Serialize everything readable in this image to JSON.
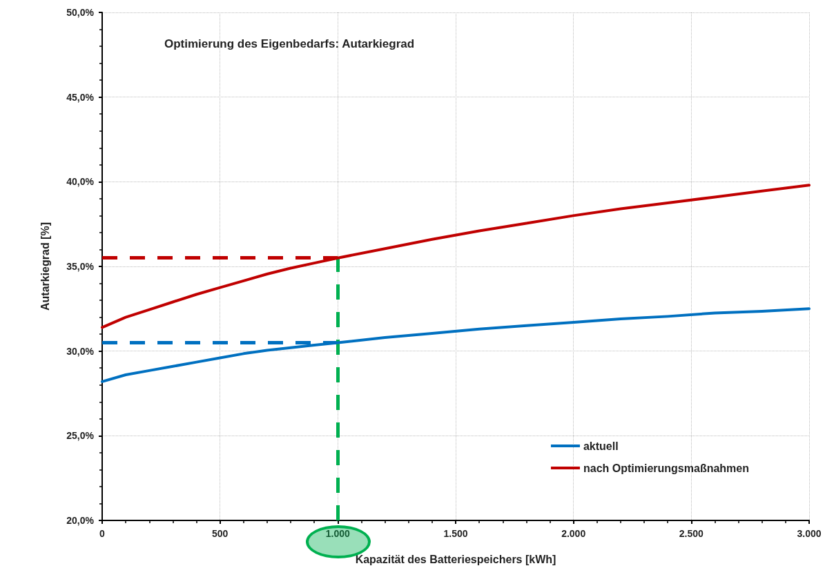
{
  "chart_data": {
    "type": "line",
    "title": "Optimierung des Eigenbedarfs: Autarkiegrad",
    "xlabel": "Kapazität des Batteriespeichers [kWh]",
    "ylabel": "Autarkiegrad [%]",
    "x": [
      0,
      100,
      200,
      300,
      400,
      500,
      600,
      700,
      800,
      900,
      1000,
      1200,
      1400,
      1600,
      1800,
      2000,
      2200,
      2400,
      2600,
      2800,
      3000
    ],
    "series": [
      {
        "name": "aktuell",
        "color": "#0070c0",
        "values": [
          28.2,
          28.6,
          28.85,
          29.1,
          29.35,
          29.6,
          29.85,
          30.05,
          30.2,
          30.35,
          30.5,
          30.8,
          31.05,
          31.3,
          31.5,
          31.7,
          31.9,
          32.05,
          32.25,
          32.35,
          32.5
        ]
      },
      {
        "name": "nach Optimierungsmaßnahmen",
        "color": "#c00000",
        "values": [
          31.4,
          32.0,
          32.45,
          32.9,
          33.35,
          33.75,
          34.15,
          34.55,
          34.9,
          35.2,
          35.5,
          36.05,
          36.6,
          37.1,
          37.55,
          38.0,
          38.4,
          38.75,
          39.1,
          39.45,
          39.8
        ]
      }
    ],
    "xlim": [
      0,
      3000
    ],
    "xticks": [
      0,
      500,
      {
        "value": 1000,
        "label": "1.000"
      },
      {
        "value": 1500,
        "label": "1.500"
      },
      {
        "value": 2000,
        "label": "2.000"
      },
      {
        "value": 2500,
        "label": "2.500"
      },
      {
        "value": 3000,
        "label": "3.000"
      }
    ],
    "ylim": [
      20,
      50
    ],
    "yticks": [
      {
        "value": 20,
        "label": "20,0%"
      },
      {
        "value": 25,
        "label": "25,0%"
      },
      {
        "value": 30,
        "label": "30,0%"
      },
      {
        "value": 35,
        "label": "35,0%"
      },
      {
        "value": 40,
        "label": "40,0%"
      },
      {
        "value": 45,
        "label": "45,0%"
      },
      {
        "value": 50,
        "label": "50,0%"
      }
    ],
    "ref_lines": [
      {
        "axis": "y",
        "value": 35.5,
        "color": "#c00000",
        "line_style": "dashed"
      },
      {
        "axis": "y",
        "value": 30.5,
        "color": "#0070c0",
        "line_style": "dashed"
      },
      {
        "axis": "x",
        "value": 1000,
        "color": "#00b050",
        "line_style": "dashed"
      }
    ],
    "grid": true,
    "legend": "bottom right",
    "marker": "none",
    "line_style": "solid"
  }
}
